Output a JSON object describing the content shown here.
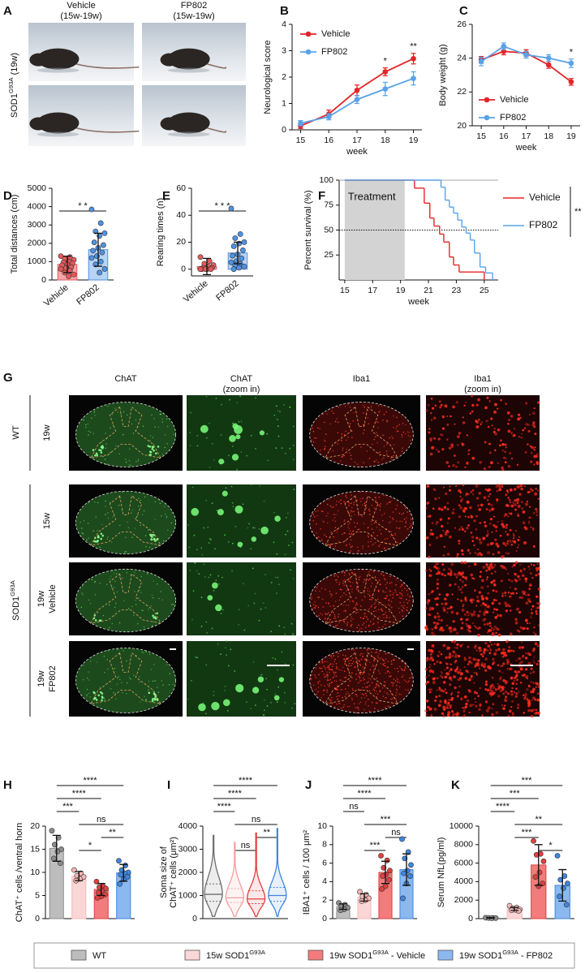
{
  "panel_a": {
    "label": "A",
    "columns": [
      [
        "Vehicle",
        "(15w-19w)"
      ],
      [
        "FP802",
        "(15w-19w)"
      ]
    ],
    "row_label": {
      "text": "SOD1",
      "sup": "G93A",
      "suffix": " (19w)"
    }
  },
  "panel_g": {
    "label": "G",
    "columns": [
      [
        "ChAT"
      ],
      [
        "ChAT",
        "(zoom in)"
      ],
      [
        "Iba1"
      ],
      [
        "Iba1",
        "(zoom in)"
      ]
    ],
    "rows": [
      [
        "19w"
      ],
      [
        "15w"
      ],
      [
        "19w",
        "Vehicle"
      ],
      [
        "19w",
        "FP802"
      ]
    ],
    "group_labels": [
      {
        "text": "WT"
      },
      {
        "text": "SOD1",
        "sup": "G93A"
      }
    ]
  },
  "legend": [
    {
      "text": "WT",
      "color": "#bdbdbd"
    },
    {
      "text": "15w SOD1",
      "sup": "G93A",
      "color": "#fbd6d6"
    },
    {
      "text": "19w SOD1",
      "sup": "G93A",
      "suffix": " - Vehicle",
      "color": "#f37b7b"
    },
    {
      "text": "19w SOD1",
      "sup": "G93A",
      "suffix": " - FP802",
      "color": "#8bb8ef"
    }
  ],
  "chart_data": [
    {
      "label": "B",
      "type": "line",
      "ylabel": "Neurological score",
      "xlabel": "week",
      "x": [
        15,
        16,
        17,
        18,
        19
      ],
      "xlim": [
        14.7,
        19.3
      ],
      "xticks": [
        15,
        16,
        17,
        18,
        19
      ],
      "ylim": [
        0,
        4
      ],
      "yticks": [
        0,
        1,
        2,
        3,
        4
      ],
      "legend": "upper-left",
      "series": [
        {
          "name": "Vehicle",
          "color": "#e42528",
          "values": [
            0.15,
            0.6,
            1.5,
            2.2,
            2.7
          ],
          "errors": [
            0.1,
            0.15,
            0.2,
            0.15,
            0.2
          ]
        },
        {
          "name": "FP802",
          "color": "#5aa2e8",
          "values": [
            0.25,
            0.5,
            1.15,
            1.55,
            1.95
          ],
          "errors": [
            0.1,
            0.12,
            0.15,
            0.25,
            0.25
          ]
        }
      ],
      "annotations": [
        {
          "text": "*",
          "x": 18
        },
        {
          "text": "**",
          "x": 19
        }
      ]
    },
    {
      "label": "C",
      "type": "line",
      "ylabel": "Body weight (g)",
      "xlabel": "week",
      "x": [
        15,
        16,
        17,
        18,
        19
      ],
      "xlim": [
        14.6,
        19.4
      ],
      "xticks": [
        15,
        16,
        17,
        18,
        19
      ],
      "ylim": [
        20,
        26
      ],
      "yticks": [
        20,
        22,
        24,
        26
      ],
      "legend": "lower-left",
      "series": [
        {
          "name": "Vehicle",
          "color": "#e42528",
          "values": [
            23.9,
            24.4,
            24.3,
            23.6,
            22.6
          ],
          "errors": [
            0.2,
            0.2,
            0.2,
            0.2,
            0.2
          ]
        },
        {
          "name": "FP802",
          "color": "#5aa2e8",
          "values": [
            23.8,
            24.7,
            24.2,
            24.0,
            23.7
          ],
          "errors": [
            0.25,
            0.2,
            0.2,
            0.2,
            0.25
          ]
        }
      ],
      "annotations": [
        {
          "text": "*",
          "x": 19
        }
      ]
    },
    {
      "label": "D",
      "type": "bar",
      "ylabel": "Total distances (cm)",
      "categories": [
        "Vehicle",
        "FP802"
      ],
      "colors": [
        "#f7a5a5",
        "#b7d3f5"
      ],
      "point_colors": [
        "#e8595b",
        "#4f92e3"
      ],
      "values": [
        850,
        1650
      ],
      "errors": [
        450,
        900
      ],
      "ylim": [
        0,
        5000
      ],
      "yticks": [
        0,
        1000,
        2000,
        3000,
        4000,
        5000
      ],
      "points": [
        [
          1300,
          1250,
          1150,
          1100,
          1000,
          950,
          900,
          850,
          800,
          700,
          650,
          600,
          500,
          400,
          300,
          200
        ],
        [
          3850,
          3100,
          2650,
          2550,
          2400,
          2050,
          1900,
          1750,
          1600,
          1500,
          1300,
          1200,
          1000,
          850,
          600,
          400
        ]
      ],
      "significance": [
        {
          "text": "* *",
          "groups": [
            0,
            1
          ]
        }
      ]
    },
    {
      "label": "E",
      "type": "bar",
      "ylabel": "Rearing times (n)",
      "categories": [
        "Vehicle",
        "FP802"
      ],
      "colors": [
        "#f7a5a5",
        "#b7d3f5"
      ],
      "point_colors": [
        "#e8595b",
        "#4f92e3"
      ],
      "values": [
        2,
        12
      ],
      "errors": [
        6,
        8
      ],
      "ylim": [
        -5,
        60
      ],
      "yticks": [
        0,
        20,
        40,
        60
      ],
      "points": [
        [
          9,
          6,
          4,
          3,
          2,
          1,
          1,
          0,
          0,
          0,
          0,
          0
        ],
        [
          45,
          26,
          23,
          20,
          19,
          17,
          14,
          11,
          10,
          8,
          6,
          5,
          4,
          3,
          2,
          1,
          0
        ]
      ],
      "significance": [
        {
          "text": "* * *",
          "groups": [
            0,
            1
          ]
        }
      ]
    },
    {
      "label": "F",
      "type": "step",
      "ylabel": "Percent survival (%)",
      "xlabel": "week",
      "xlim": [
        14.6,
        26
      ],
      "xticks": [
        15,
        17,
        19,
        21,
        23,
        25
      ],
      "ylim": [
        0,
        100
      ],
      "yticks": [
        25,
        50,
        75,
        100
      ],
      "legend": "right",
      "shade": [
        15,
        19.3
      ],
      "shade_label": "Treatment",
      "reference_line": 50,
      "legend_annotation": "**",
      "series": [
        {
          "name": "Vehicle",
          "color": "#e42528",
          "x": [
            15,
            20,
            20.7,
            21.1,
            21.4,
            21.8,
            22.1,
            22.5,
            22.8,
            23.2,
            25
          ],
          "values": [
            100,
            92,
            77,
            62,
            54,
            46,
            38,
            23,
            15,
            8,
            0
          ]
        },
        {
          "name": "FP802",
          "color": "#5aa2e8",
          "x": [
            15,
            21.9,
            22.2,
            22.5,
            22.8,
            23.1,
            23.4,
            23.7,
            24,
            24.3,
            24.7,
            25.1,
            25.6
          ],
          "values": [
            100,
            93,
            80,
            73,
            67,
            60,
            53,
            47,
            40,
            27,
            13,
            7,
            0
          ]
        }
      ]
    },
    {
      "label": "H",
      "type": "bar",
      "ylabel": "ChAT⁺ cells /ventral horn",
      "colors": [
        "#bdbdbd",
        "#fbd6d6",
        "#f37b7b",
        "#8bb8ef"
      ],
      "point_colors": [
        "#8c8c8c",
        "#f6b8b8",
        "#e33f3f",
        "#3f86e0"
      ],
      "values": [
        15.2,
        9.2,
        6.3,
        9.9
      ],
      "errors": [
        2.8,
        1.0,
        1.3,
        1.8
      ],
      "ylim": [
        0,
        20
      ],
      "yticks": [
        0,
        5,
        10,
        15,
        20
      ],
      "points": [
        [
          19,
          17.5,
          16,
          15,
          14.5,
          13,
          12
        ],
        [
          10.5,
          9.8,
          9.3,
          9,
          8.6,
          8.2
        ],
        [
          8,
          7,
          6.8,
          6.5,
          6,
          5.6,
          5.2,
          4.8,
          4.5
        ],
        [
          12.5,
          11.5,
          10.5,
          10,
          9.8,
          9.5,
          9,
          8.5,
          7.5
        ]
      ],
      "significance": [
        {
          "text": "****",
          "groups": [
            0,
            3
          ]
        },
        {
          "text": "****",
          "groups": [
            0,
            2
          ]
        },
        {
          "text": "***",
          "groups": [
            0,
            1
          ]
        },
        {
          "text": "ns",
          "groups": [
            1,
            3
          ]
        },
        {
          "text": "**",
          "groups": [
            2,
            3
          ]
        },
        {
          "text": "*",
          "groups": [
            1,
            2
          ]
        }
      ]
    },
    {
      "label": "I",
      "type": "violin",
      "ylabel": [
        "Soma size of",
        "ChAT⁺ cells (μm²)"
      ],
      "colors": [
        "#6e6e6e",
        "#f2a0a0",
        "#e33f3f",
        "#3f86e0"
      ],
      "medians": [
        1050,
        900,
        850,
        1000
      ],
      "q1": [
        750,
        700,
        650,
        750
      ],
      "q3": [
        1500,
        1300,
        1200,
        1350
      ],
      "min": [
        100,
        100,
        100,
        100
      ],
      "max": [
        3600,
        3300,
        3700,
        3900
      ],
      "ylim": [
        0,
        4000
      ],
      "yticks": [
        0,
        1000,
        2000,
        3000,
        4000
      ],
      "significance": [
        {
          "text": "****",
          "groups": [
            0,
            3
          ]
        },
        {
          "text": "****",
          "groups": [
            0,
            2
          ]
        },
        {
          "text": "****",
          "groups": [
            0,
            1
          ]
        },
        {
          "text": "ns",
          "groups": [
            1,
            3
          ]
        },
        {
          "text": "**",
          "groups": [
            2,
            3
          ]
        },
        {
          "text": "ns",
          "groups": [
            1,
            2
          ]
        }
      ]
    },
    {
      "label": "J",
      "type": "bar",
      "ylabel": "IBA1⁺ cells / 100 μm²",
      "colors": [
        "#bdbdbd",
        "#fbd6d6",
        "#f37b7b",
        "#8bb8ef"
      ],
      "point_colors": [
        "#8c8c8c",
        "#f6b8b8",
        "#e33f3f",
        "#3f86e0"
      ],
      "values": [
        1.3,
        2.3,
        5.0,
        5.3
      ],
      "errors": [
        0.3,
        0.4,
        1.2,
        1.7
      ],
      "ylim": [
        0,
        10
      ],
      "yticks": [
        0,
        2,
        4,
        6,
        8,
        10
      ],
      "points": [
        [
          1.7,
          1.5,
          1.3,
          1.2,
          1.0,
          0.9
        ],
        [
          2.9,
          2.6,
          2.4,
          2.2,
          2.0,
          1.9
        ],
        [
          6.8,
          6.3,
          5.5,
          5.2,
          4.8,
          4.6,
          4.2,
          3.5,
          3.2
        ],
        [
          8.6,
          7.2,
          6.5,
          5.8,
          5.2,
          4.9,
          4.6,
          3.8,
          2.2
        ]
      ],
      "significance": [
        {
          "text": "****",
          "groups": [
            0,
            3
          ]
        },
        {
          "text": "****",
          "groups": [
            0,
            2
          ]
        },
        {
          "text": "ns",
          "groups": [
            0,
            1
          ]
        },
        {
          "text": "***",
          "groups": [
            1,
            3
          ]
        },
        {
          "text": "ns",
          "groups": [
            2,
            3
          ]
        },
        {
          "text": "***",
          "groups": [
            1,
            2
          ]
        }
      ]
    },
    {
      "label": "K",
      "type": "bar",
      "ylabel": "Serum NfL(pg/ml)",
      "colors": [
        "#bdbdbd",
        "#fbd6d6",
        "#f37b7b",
        "#8bb8ef"
      ],
      "point_colors": [
        "#8c8c8c",
        "#f6b8b8",
        "#e33f3f",
        "#3f86e0"
      ],
      "values": [
        75,
        1050,
        5800,
        3600
      ],
      "errors": [
        30,
        170,
        2200,
        1700
      ],
      "ylim": [
        0,
        10000
      ],
      "yticks": [
        0,
        2000,
        4000,
        6000,
        8000,
        10000
      ],
      "points": [
        [
          100,
          80,
          70,
          60,
          50
        ],
        [
          1400,
          1200,
          1100,
          1000,
          950,
          900,
          850
        ],
        [
          8400,
          7000,
          6900,
          6200,
          5000,
          4500,
          3800,
          3500
        ],
        [
          6800,
          4600,
          4200,
          3800,
          3300,
          2400,
          1500
        ]
      ],
      "significance": [
        {
          "text": "***",
          "groups": [
            0,
            3
          ]
        },
        {
          "text": "***",
          "groups": [
            0,
            2
          ]
        },
        {
          "text": "****",
          "groups": [
            0,
            1
          ]
        },
        {
          "text": "**",
          "groups": [
            1,
            3
          ]
        },
        {
          "text": "***",
          "groups": [
            1,
            2
          ]
        },
        {
          "text": "*",
          "groups": [
            2,
            3
          ]
        }
      ]
    }
  ]
}
